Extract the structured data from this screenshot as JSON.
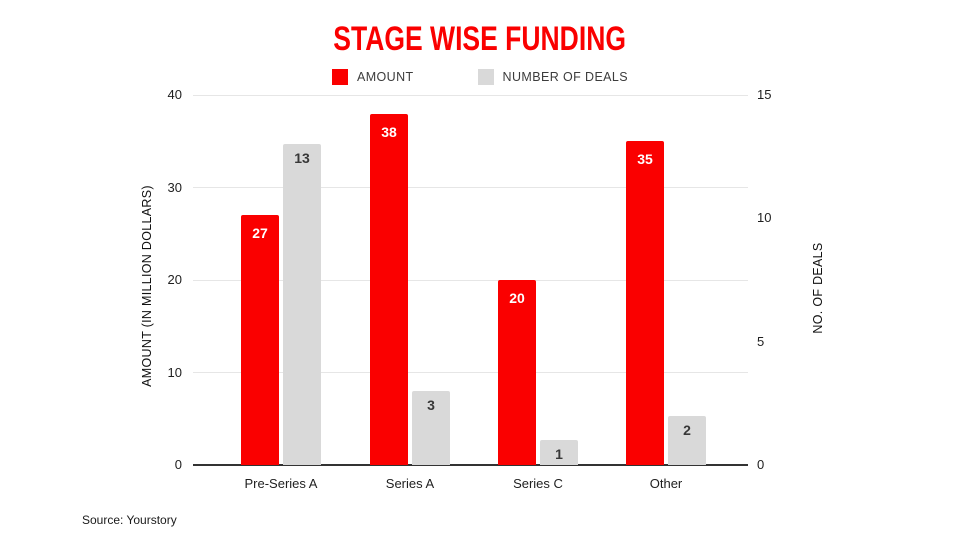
{
  "title": "STAGE WISE FUNDING",
  "legend": {
    "amount_label": "AMOUNT",
    "deals_label": "NUMBER OF DEALS"
  },
  "source": "Source: Yourstory",
  "colors": {
    "amount_red": "#fa0000",
    "deals_gray": "#d9d9d9",
    "title_red": "#fa0000",
    "gridline": "#e6e6e6",
    "axis_line": "#333333",
    "value_on_red": "#ffffff",
    "value_on_gray": "#383838"
  },
  "chart_data": {
    "type": "bar",
    "title": "STAGE WISE FUNDING",
    "categories": [
      "Pre-Series A",
      "Series A",
      "Series C",
      "Other"
    ],
    "series": [
      {
        "name": "AMOUNT",
        "axis": "left",
        "color": "#fa0000",
        "values": [
          27,
          38,
          20,
          35
        ]
      },
      {
        "name": "NUMBER OF DEALS",
        "axis": "right",
        "color": "#d9d9d9",
        "values": [
          13,
          3,
          1,
          2
        ]
      }
    ],
    "left_axis": {
      "label": "AMOUNT (IN MILLION DOLLARS)",
      "ticks": [
        0,
        10,
        20,
        30,
        40
      ],
      "min": 0,
      "max": 40
    },
    "right_axis": {
      "label": "NO. OF DEALS",
      "ticks": [
        0,
        5,
        10,
        15
      ],
      "min": 0,
      "max": 15
    },
    "grid": true,
    "legend_position": "top",
    "source": "Source: Yourstory"
  }
}
